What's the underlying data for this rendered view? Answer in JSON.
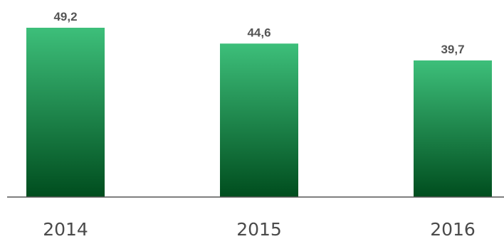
{
  "chart_data": {
    "type": "bar",
    "categories": [
      "2014",
      "2015",
      "2016"
    ],
    "values": [
      49.2,
      44.6,
      39.7
    ],
    "value_labels": [
      "49,2",
      "44,6",
      "39,7"
    ],
    "title": "",
    "xlabel": "",
    "ylabel": "",
    "ylim": [
      0,
      49.2
    ],
    "grid": false,
    "legend": "none",
    "colors": {
      "bar_top": "#3dbf7a",
      "bar_bottom": "#004d1e",
      "axis": "#555555",
      "label": "#555555"
    }
  }
}
